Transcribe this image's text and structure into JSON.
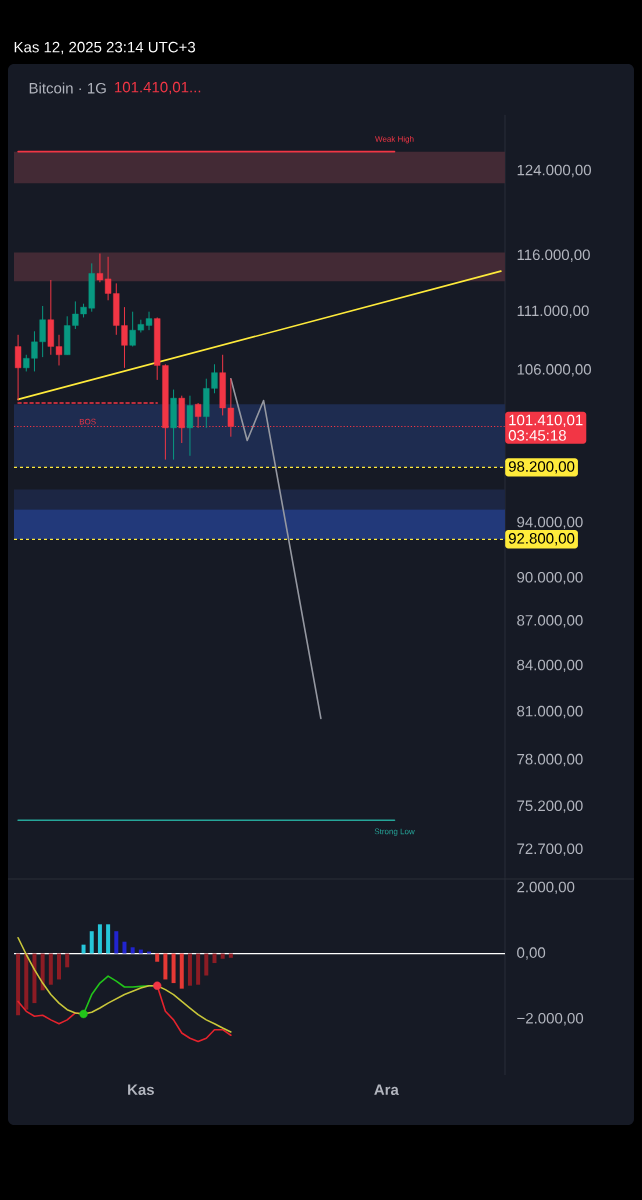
{
  "chart_data": [
    {
      "type": "candlestick",
      "title": "Bitcoin · 1G",
      "annotations": [
        "Kas 12, 2025 23:14 UTC+3",
        "101.410,01...",
        "03:45:18",
        {
          "text": "Weak High",
          "y": 125900
        },
        {
          "text": "BOS",
          "y": 101800
        },
        {
          "text": "Strong Low",
          "y": 74400
        }
      ],
      "categories": [
        null,
        null,
        null,
        null,
        null,
        null,
        null,
        null,
        null,
        null,
        null,
        null,
        null,
        null,
        null,
        null,
        null,
        null,
        null,
        null,
        null,
        null,
        null,
        null,
        null,
        null,
        null,
        null,
        null,
        null,
        null,
        null,
        null,
        null,
        null,
        null,
        null,
        null,
        null,
        null,
        null,
        null,
        null,
        null,
        null,
        null,
        null,
        null,
        null,
        null,
        null,
        null,
        null,
        null,
        null,
        null,
        null,
        null,
        null,
        null
      ],
      "ohlc": [
        [
          108000,
          109000,
          103500,
          106200
        ],
        [
          106200,
          107300,
          105900,
          107000
        ],
        [
          107000,
          109300,
          105900,
          108400
        ],
        [
          108400,
          111500,
          107100,
          110300
        ],
        [
          110300,
          113800,
          107300,
          108000
        ],
        [
          108000,
          109000,
          106400,
          107300
        ],
        [
          107300,
          110600,
          107300,
          109800
        ],
        [
          109800,
          111900,
          109500,
          110800
        ],
        [
          110800,
          111700,
          110500,
          111400
        ],
        [
          111300,
          115300,
          111000,
          114400
        ],
        [
          114400,
          116200,
          113600,
          113800
        ],
        [
          113900,
          115900,
          112000,
          112600
        ],
        [
          112600,
          113500,
          109000,
          109800
        ],
        [
          109800,
          111400,
          106200,
          108100
        ],
        [
          108100,
          111000,
          108000,
          109400
        ],
        [
          109400,
          110300,
          109200,
          109900
        ],
        [
          109800,
          111000,
          109400,
          110400
        ],
        [
          110400,
          110500,
          105200,
          106400
        ],
        [
          106400,
          106500,
          98800,
          101300
        ],
        [
          101300,
          104400,
          98800,
          103700
        ],
        [
          103700,
          103900,
          100100,
          101300
        ],
        [
          101300,
          103900,
          99100,
          103100
        ],
        [
          103200,
          103300,
          101300,
          102200
        ],
        [
          102200,
          105300,
          101300,
          104500
        ],
        [
          104500,
          106500,
          104100,
          105800
        ],
        [
          105800,
          107300,
          102300,
          102900
        ],
        [
          102900,
          105300,
          100600,
          101410.01
        ],
        null,
        null,
        null,
        null,
        null,
        null,
        null,
        null,
        null,
        null,
        null,
        null,
        null,
        null,
        null,
        null,
        null,
        null,
        null,
        null,
        null,
        null,
        null,
        null,
        null,
        null,
        null,
        null,
        null,
        null,
        null,
        null,
        null
      ],
      "colors": [
        "#f23645",
        "#089981",
        "#089981",
        "#089981",
        "#f23645",
        "#f23645",
        "#089981",
        "#089981",
        "#089981",
        "#089981",
        "#f23645",
        "#f23645",
        "#f23645",
        "#f23645",
        "#089981",
        "#089981",
        "#089981",
        "#f23645",
        "#f23645",
        "#089981",
        "#f23645",
        "#089981",
        "#f23645",
        "#089981",
        "#089981",
        "#f23645",
        "#f23645",
        null,
        null,
        null,
        null,
        null,
        null,
        null,
        null,
        null,
        null,
        null,
        null,
        null,
        null,
        null,
        null,
        null,
        null,
        null,
        null,
        null,
        null,
        null,
        null,
        null,
        null,
        null,
        null,
        null,
        null,
        null,
        null,
        null
      ],
      "series": [
        {
          "type": "line",
          "color": "#ffeb3b",
          "values": [
            103600,
            null,
            null,
            null,
            null,
            null,
            null,
            null,
            null,
            null,
            null,
            null,
            null,
            null,
            null,
            null,
            null,
            null,
            null,
            null,
            null,
            null,
            null,
            null,
            null,
            null,
            null,
            null,
            null,
            null,
            null,
            null,
            null,
            null,
            null,
            null,
            null,
            null,
            null,
            null,
            null,
            null,
            null,
            null,
            null,
            null,
            null,
            null,
            null,
            null,
            null,
            null,
            null,
            null,
            null,
            null,
            null,
            null,
            null,
            114600
          ]
        },
        {
          "type": "line",
          "color": "#f23645",
          "values": [
            125900,
            125900,
            125900,
            125900,
            125900,
            125900,
            125900,
            125900,
            125900,
            125900,
            125900,
            125900,
            125900,
            125900,
            125900,
            125900,
            125900,
            125900,
            125900,
            125900,
            125900,
            125900,
            125900,
            125900,
            125900,
            125900,
            125900,
            125900,
            125900,
            125900,
            125900,
            125900,
            125900,
            125900,
            125900,
            125900,
            125900,
            125900,
            125900,
            125900,
            125900,
            125900,
            125900,
            125900,
            125900,
            125900,
            125900,
            null,
            null,
            null,
            null,
            null,
            null,
            null,
            null,
            null,
            null,
            null,
            null,
            null
          ]
        },
        {
          "type": "line",
          "color": "#26a69a",
          "values": [
            74400,
            74400,
            74400,
            74400,
            74400,
            74400,
            74400,
            74400,
            74400,
            74400,
            74400,
            74400,
            74400,
            74400,
            74400,
            74400,
            74400,
            74400,
            74400,
            74400,
            74400,
            74400,
            74400,
            74400,
            74400,
            74400,
            74400,
            74400,
            74400,
            74400,
            74400,
            74400,
            74400,
            74400,
            74400,
            74400,
            74400,
            74400,
            74400,
            74400,
            74400,
            74400,
            74400,
            74400,
            74400,
            74400,
            74400,
            null,
            null,
            null,
            null,
            null,
            null,
            null,
            null,
            null,
            null,
            null,
            null,
            null
          ]
        },
        {
          "type": "line",
          "color": "#f23645",
          "line_style": "dashed",
          "values": [
            103300,
            103300,
            103300,
            103300,
            103300,
            103300,
            103300,
            103300,
            103300,
            103300,
            103300,
            103300,
            103300,
            103300,
            103300,
            103300,
            103300,
            103300,
            null,
            null,
            null,
            null,
            null,
            null,
            null,
            null,
            null,
            null,
            null,
            null,
            null,
            null,
            null,
            null,
            null,
            null,
            null,
            null,
            null,
            null,
            null,
            null,
            null,
            null,
            null,
            null,
            null,
            null,
            null,
            null,
            null,
            null,
            null,
            null,
            null,
            null,
            null,
            null,
            null,
            null
          ]
        },
        {
          "type": "line",
          "color": "#9598a1",
          "values": [
            null,
            null,
            null,
            null,
            null,
            null,
            null,
            null,
            null,
            null,
            null,
            null,
            null,
            null,
            null,
            null,
            null,
            null,
            null,
            null,
            null,
            null,
            null,
            null,
            null,
            null,
            105300,
            null,
            100300,
            null,
            103500,
            null,
            null,
            null,
            null,
            null,
            null,
            80600,
            null,
            null,
            null,
            null,
            null,
            null,
            null,
            null,
            null,
            null,
            null,
            null,
            null,
            null,
            null,
            null,
            null,
            null,
            null,
            null,
            null,
            null
          ]
        }
      ],
      "ylim": [
        71100,
        129600
      ],
      "log": true,
      "yticks": [
        {
          "value": 124000,
          "label": "124.000,00"
        },
        {
          "value": 116000,
          "label": "116.000,00"
        },
        {
          "value": 111000,
          "label": "111.000,00"
        },
        {
          "value": 106000,
          "label": "106.000,00"
        },
        {
          "value": 94000,
          "label": "94.000,00"
        },
        {
          "value": 90000,
          "label": "90.000,00"
        },
        {
          "value": 87000,
          "label": "87.000,00"
        },
        {
          "value": 84000,
          "label": "84.000,00"
        },
        {
          "value": 81000,
          "label": "81.000,00"
        },
        {
          "value": 78000,
          "label": "78.000,00"
        },
        {
          "value": 75200,
          "label": "75.200,00"
        },
        {
          "value": 72700,
          "label": "72.700,00"
        }
      ],
      "tick_labels": "y",
      "ref_lines": [
        {
          "axis": "y",
          "value": 101410.01,
          "label": "101.410,01",
          "color": "#f23645",
          "line_style": "dotted"
        },
        {
          "axis": "y",
          "value": 98200,
          "label": "98.200,00",
          "color": "#ffeb3b",
          "line_style": "dashed"
        },
        {
          "axis": "y",
          "value": 92800,
          "label": "92.800,00",
          "color": "#ffeb3b",
          "line_style": "dashed"
        }
      ],
      "bands": [
        {
          "axis": "y",
          "from": 122800,
          "to": 125900,
          "color": "#432a35"
        },
        {
          "axis": "y",
          "from": 113700,
          "to": 116300,
          "color": "#432a35"
        },
        {
          "axis": "y",
          "from": 98200,
          "to": 103200,
          "color": "#1e2c50"
        },
        {
          "axis": "y",
          "from": 95000,
          "to": 96500,
          "color": "#1c2644"
        },
        {
          "axis": "y",
          "from": 92800,
          "to": 95000,
          "color": "#22397a"
        }
      ]
    },
    {
      "type": "bar",
      "categories": [
        null,
        null,
        null,
        null,
        null,
        null,
        null,
        null,
        null,
        null,
        null,
        null,
        null,
        null,
        null,
        "Kas",
        null,
        null,
        null,
        null,
        null,
        null,
        null,
        null,
        null,
        null,
        null,
        null,
        null,
        null,
        null,
        null,
        null,
        null,
        null,
        null,
        null,
        null,
        null,
        null,
        null,
        null,
        null,
        null,
        null,
        "Ara",
        null,
        null,
        null,
        null,
        null,
        null,
        null,
        null,
        null,
        null,
        null,
        null,
        null,
        null
      ],
      "series": [
        {
          "type": "bar",
          "colors": [
            "#8c1c24",
            "#8c1c24",
            "#8c1c24",
            "#8c1c24",
            "#8c1c24",
            "#8c1c24",
            "#8c1c24",
            "#8c1c24",
            "#26c6da",
            "#26c6da",
            "#26c6da",
            "#26c6da",
            "#2124d0",
            "#2124d0",
            "#2124d0",
            "#2124d0",
            "#2124d0",
            "#e53935",
            "#e53935",
            "#e53935",
            "#e53935",
            "#8c1c24",
            "#8c1c24",
            "#8c1c24",
            "#8c1c24",
            "#8c1c24",
            "#8c1c24",
            null,
            null,
            null,
            null,
            null,
            null,
            null,
            null,
            null,
            null,
            null,
            null,
            null,
            null,
            null,
            null,
            null,
            null,
            null,
            null,
            null,
            null,
            null,
            null,
            null,
            null,
            null,
            null,
            null,
            null,
            null,
            null,
            null
          ],
          "values": [
            -1880,
            -1710,
            -1510,
            -1120,
            -950,
            -790,
            -420,
            0,
            270,
            680,
            890,
            890,
            680,
            360,
            190,
            120,
            60,
            -250,
            -790,
            -900,
            -1070,
            -980,
            -950,
            -670,
            -290,
            -160,
            -130,
            null,
            null,
            null,
            null,
            null,
            null,
            null,
            null,
            null,
            null,
            null,
            null,
            null,
            null,
            null,
            null,
            null,
            null,
            null,
            null,
            null,
            null,
            null,
            null,
            null,
            null,
            null,
            null,
            null,
            null,
            null,
            null,
            null
          ]
        },
        {
          "type": "line",
          "color": "#e5232d",
          "values": [
            -1460,
            -1760,
            -1910,
            -1880,
            -2020,
            -2140,
            -2020,
            -1810,
            -1840,
            null,
            null,
            null,
            null,
            null,
            null,
            null,
            null,
            null,
            null,
            null,
            null,
            null,
            null,
            null,
            null,
            null,
            null,
            null,
            null,
            null,
            null,
            null,
            null,
            null,
            null,
            null,
            null,
            null,
            null,
            null,
            null,
            null,
            null,
            null,
            null,
            null,
            null,
            null,
            null,
            null,
            null,
            null,
            null,
            null,
            null,
            null,
            null,
            null,
            null,
            null
          ]
        },
        {
          "type": "line",
          "color": "#e5232d",
          "values": [
            null,
            null,
            null,
            null,
            null,
            null,
            null,
            null,
            null,
            null,
            null,
            null,
            null,
            null,
            null,
            null,
            null,
            -980,
            -1760,
            -2020,
            -2420,
            -2580,
            -2680,
            -2580,
            -2320,
            -2320,
            -2490,
            null,
            null,
            null,
            null,
            null,
            null,
            null,
            null,
            null,
            null,
            null,
            null,
            null,
            null,
            null,
            null,
            null,
            null,
            null,
            null,
            null,
            null,
            null,
            null,
            null,
            null,
            null,
            null,
            null,
            null,
            null,
            null,
            null
          ]
        },
        {
          "type": "line",
          "color": "#22c51a",
          "values": [
            null,
            null,
            null,
            null,
            null,
            null,
            null,
            null,
            -1840,
            -1250,
            -900,
            -690,
            -840,
            -1020,
            -1020,
            -1000,
            -980,
            -980,
            null,
            null,
            null,
            null,
            null,
            null,
            null,
            null,
            null,
            null,
            null,
            null,
            null,
            null,
            null,
            null,
            null,
            null,
            null,
            null,
            null,
            null,
            null,
            null,
            null,
            null,
            null,
            null,
            null,
            null,
            null,
            null,
            null,
            null,
            null,
            null,
            null,
            null,
            null,
            null,
            null,
            null
          ]
        },
        {
          "type": "line",
          "color": "#c9c73a",
          "values": [
            480,
            -30,
            -490,
            -900,
            -1250,
            -1510,
            -1710,
            -1810,
            -1840,
            -1790,
            -1660,
            -1510,
            -1380,
            -1250,
            -1150,
            -1050,
            -980,
            -980,
            -1100,
            -1250,
            -1460,
            -1660,
            -1860,
            -2020,
            -2140,
            -2270,
            -2390,
            null,
            null,
            null,
            null,
            null,
            null,
            null,
            null,
            null,
            null,
            null,
            null,
            null,
            null,
            null,
            null,
            null,
            null,
            null,
            null,
            null,
            null,
            null,
            null,
            null,
            null,
            null,
            null,
            null,
            null,
            null,
            null,
            null
          ]
        },
        {
          "type": "scatter",
          "color": "#22c51a",
          "marker": "circle",
          "values": [
            null,
            null,
            null,
            null,
            null,
            null,
            null,
            null,
            -1840,
            null,
            null,
            null,
            null,
            null,
            null,
            null,
            null,
            null,
            null,
            null,
            null,
            null,
            null,
            null,
            null,
            null,
            null,
            null,
            null,
            null,
            null,
            null,
            null,
            null,
            null,
            null,
            null,
            null,
            null,
            null,
            null,
            null,
            null,
            null,
            null,
            null,
            null,
            null,
            null,
            null,
            null,
            null,
            null,
            null,
            null,
            null,
            null,
            null,
            null,
            null
          ]
        },
        {
          "type": "scatter",
          "color": "#f23645",
          "marker": "circle",
          "values": [
            null,
            null,
            null,
            null,
            null,
            null,
            null,
            null,
            null,
            null,
            null,
            null,
            null,
            null,
            null,
            null,
            null,
            -980,
            null,
            null,
            null,
            null,
            null,
            null,
            null,
            null,
            null,
            null,
            null,
            null,
            null,
            null,
            null,
            null,
            null,
            null,
            null,
            null,
            null,
            null,
            null,
            null,
            null,
            null,
            null,
            null,
            null,
            null,
            null,
            null,
            null,
            null,
            null,
            null,
            null,
            null,
            null,
            null,
            null,
            null
          ]
        }
      ],
      "ylim": [
        -3700,
        2300
      ],
      "yticks": [
        {
          "value": 2000,
          "label": "2.000,00"
        },
        {
          "value": 0,
          "label": "0,00"
        },
        {
          "value": -2000,
          "label": "−2.000,00"
        }
      ],
      "ref_lines": [
        {
          "axis": "y",
          "value": 0,
          "color": "#ffffff"
        }
      ]
    }
  ]
}
